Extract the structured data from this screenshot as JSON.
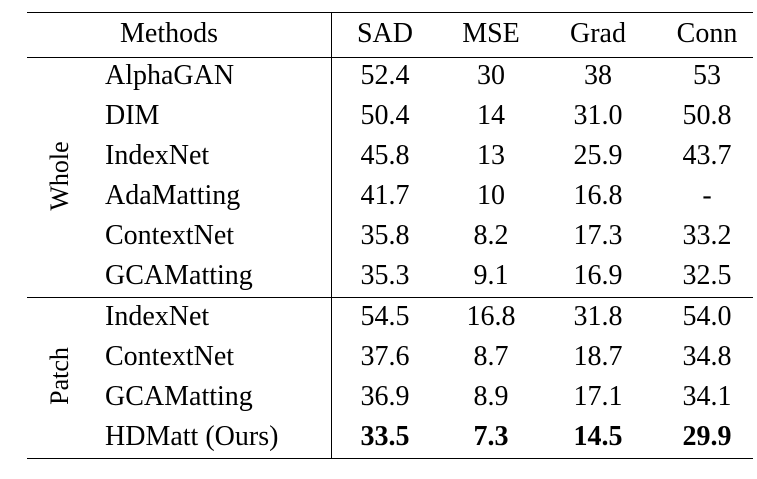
{
  "table": {
    "header": [
      "Methods",
      "SAD",
      "MSE",
      "Grad",
      "Conn"
    ],
    "groups": [
      {
        "label": "Whole",
        "rows": [
          {
            "method": "AlphaGAN",
            "values": [
              "52.4",
              "30",
              "38",
              "53"
            ]
          },
          {
            "method": "DIM",
            "values": [
              "50.4",
              "14",
              "31.0",
              "50.8"
            ]
          },
          {
            "method": "IndexNet",
            "values": [
              "45.8",
              "13",
              "25.9",
              "43.7"
            ]
          },
          {
            "method": "AdaMatting",
            "values": [
              "41.7",
              "10",
              "16.8",
              "-"
            ]
          },
          {
            "method": "ContextNet",
            "values": [
              "35.8",
              "8.2",
              "17.3",
              "33.2"
            ]
          },
          {
            "method": "GCAMatting",
            "values": [
              "35.3",
              "9.1",
              "16.9",
              "32.5"
            ]
          }
        ]
      },
      {
        "label": "Patch",
        "rows": [
          {
            "method": "IndexNet",
            "values": [
              "54.5",
              "16.8",
              "31.8",
              "54.0"
            ]
          },
          {
            "method": "ContextNet",
            "values": [
              "37.6",
              "8.7",
              "18.7",
              "34.8"
            ]
          },
          {
            "method": "GCAMatting",
            "values": [
              "36.9",
              "8.9",
              "17.1",
              "34.1"
            ]
          },
          {
            "method": "HDMatt (Ours)",
            "values": [
              "33.5",
              "7.3",
              "14.5",
              "29.9"
            ],
            "bold": true
          }
        ]
      }
    ]
  }
}
